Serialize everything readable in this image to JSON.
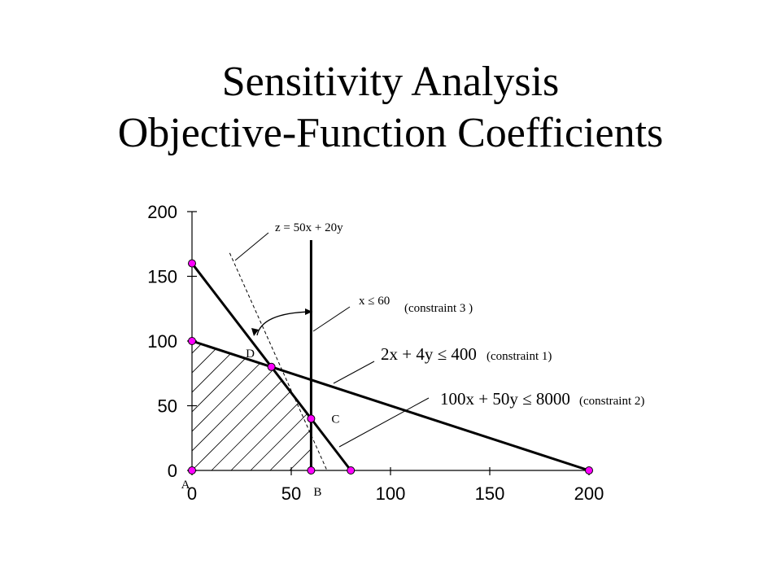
{
  "title_line1": "Sensitivity Analysis",
  "title_line2": "Objective-Function Coefficients",
  "chart_data": {
    "type": "line",
    "xlim": [
      0,
      200
    ],
    "ylim": [
      0,
      200
    ],
    "x_ticks": [
      0,
      50,
      100,
      150,
      200
    ],
    "y_ticks": [
      0,
      50,
      100,
      150,
      200
    ],
    "x_tick_labels": [
      "0",
      "50",
      "100",
      "150",
      "200"
    ],
    "y_tick_labels": [
      "0",
      "50",
      "100",
      "150",
      "200"
    ],
    "series": [
      {
        "name": "(constraint 1)",
        "equation": "2x + 4y ≤ 400",
        "points": [
          [
            0,
            100
          ],
          [
            200,
            0
          ]
        ]
      },
      {
        "name": "(constraint 2)",
        "equation": "100x + 50y ≤ 8000",
        "points": [
          [
            0,
            160
          ],
          [
            80,
            0
          ]
        ]
      },
      {
        "name": "(constraint 3 )",
        "equation": "x ≤ 60",
        "points": [
          [
            60,
            0
          ],
          [
            60,
            178
          ]
        ]
      },
      {
        "name": "z = 50x + 20y",
        "style": "dashed",
        "points": [
          [
            19,
            168
          ],
          [
            68,
            0
          ]
        ]
      }
    ],
    "markers": [
      [
        0,
        0
      ],
      [
        0,
        100
      ],
      [
        0,
        160
      ],
      [
        60,
        0
      ],
      [
        80,
        0
      ],
      [
        200,
        0
      ],
      [
        40,
        80
      ],
      [
        60,
        40
      ]
    ],
    "point_labels": [
      {
        "text": "A",
        "x": 0,
        "y": 0
      },
      {
        "text": "B",
        "x": 60,
        "y": 0
      },
      {
        "text": "C",
        "x": 60,
        "y": 40
      },
      {
        "text": "D",
        "x": 40,
        "y": 80
      }
    ],
    "feasible_region": [
      [
        0,
        0
      ],
      [
        0,
        100
      ],
      [
        40,
        80
      ],
      [
        60,
        40
      ],
      [
        60,
        0
      ]
    ],
    "color": "#ff00ff"
  }
}
